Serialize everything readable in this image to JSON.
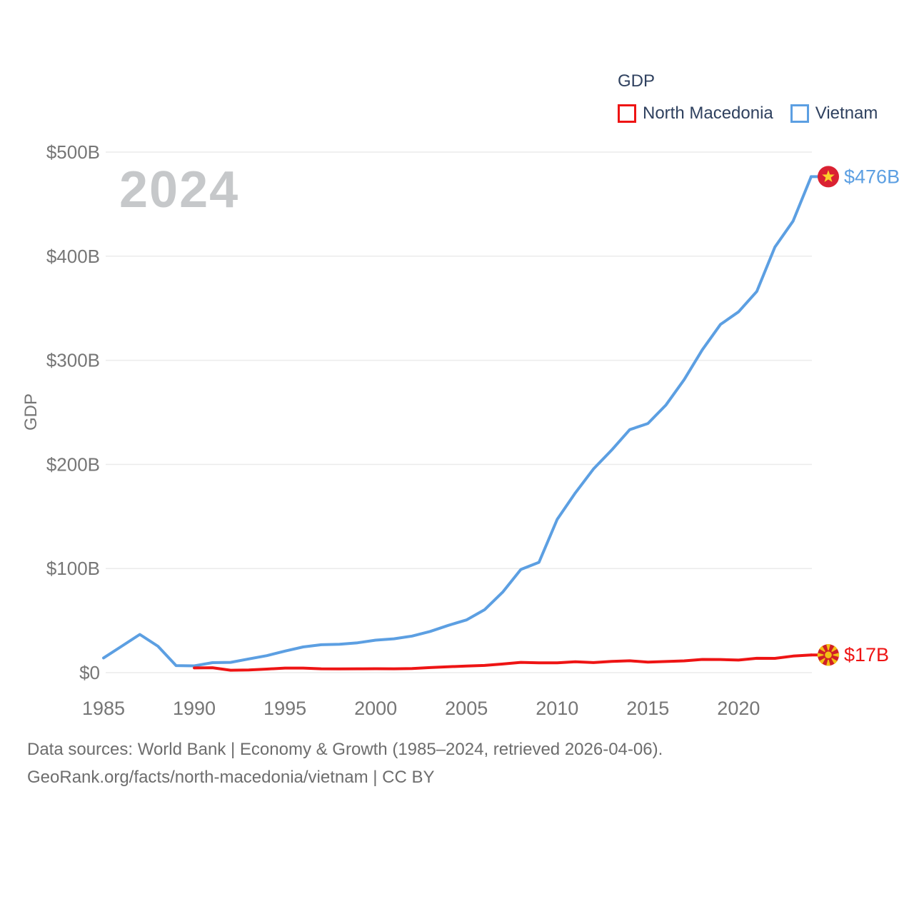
{
  "watermark": "2024",
  "legend": {
    "title": "GDP",
    "items": [
      {
        "label": "North Macedonia",
        "color": "#ee1414"
      },
      {
        "label": "Vietnam",
        "color": "#5c9fe2"
      }
    ]
  },
  "footer": {
    "line1": "Data sources: World Bank | Economy & Growth (1985–2024, retrieved 2026-04-06).",
    "line2": "GeoRank.org/facts/north-macedonia/vietnam | CC BY"
  },
  "chart_data": {
    "type": "line",
    "title": "GDP",
    "xlabel": "",
    "ylabel": "GDP",
    "xlim": [
      1985,
      2024
    ],
    "ylim": [
      0,
      500
    ],
    "grid": true,
    "legend_position": "top-right",
    "x_ticks": [
      1985,
      1990,
      1995,
      2000,
      2005,
      2010,
      2015,
      2020
    ],
    "y_ticks": [
      {
        "value": 0,
        "label": "$0"
      },
      {
        "value": 100,
        "label": "$100B"
      },
      {
        "value": 200,
        "label": "$200B"
      },
      {
        "value": 300,
        "label": "$300B"
      },
      {
        "value": 400,
        "label": "$400B"
      },
      {
        "value": 500,
        "label": "$500B"
      }
    ],
    "series": [
      {
        "name": "North Macedonia",
        "color": "#ee1414",
        "flag": "north-macedonia",
        "start_year": 1990,
        "end_label": "$17B",
        "values": [
          4.5,
          4.7,
          2.3,
          2.6,
          3.4,
          4.4,
          4.4,
          3.7,
          3.6,
          3.7,
          3.8,
          3.7,
          4.0,
          4.9,
          5.7,
          6.3,
          6.9,
          8.3,
          9.9,
          9.4,
          9.4,
          10.5,
          9.7,
          10.8,
          11.4,
          10.1,
          10.7,
          11.3,
          12.7,
          12.6,
          12.1,
          13.8,
          13.7,
          15.9,
          17.0
        ]
      },
      {
        "name": "Vietnam",
        "color": "#5c9fe2",
        "flag": "vietnam",
        "start_year": 1985,
        "end_label": "$476B",
        "values": [
          14.1,
          25.4,
          36.7,
          25.4,
          6.8,
          6.5,
          9.6,
          9.9,
          13.2,
          16.3,
          20.7,
          24.7,
          26.8,
          27.2,
          28.7,
          31.2,
          32.5,
          35.1,
          39.6,
          45.4,
          50.6,
          60.4,
          77.4,
          99.1,
          106.0,
          147.2,
          172.6,
          195.6,
          213.7,
          233.4,
          239.3,
          257.1,
          281.4,
          310.1,
          334.4,
          346.6,
          366.1,
          408.8,
          433.7,
          476.4
        ]
      }
    ]
  }
}
